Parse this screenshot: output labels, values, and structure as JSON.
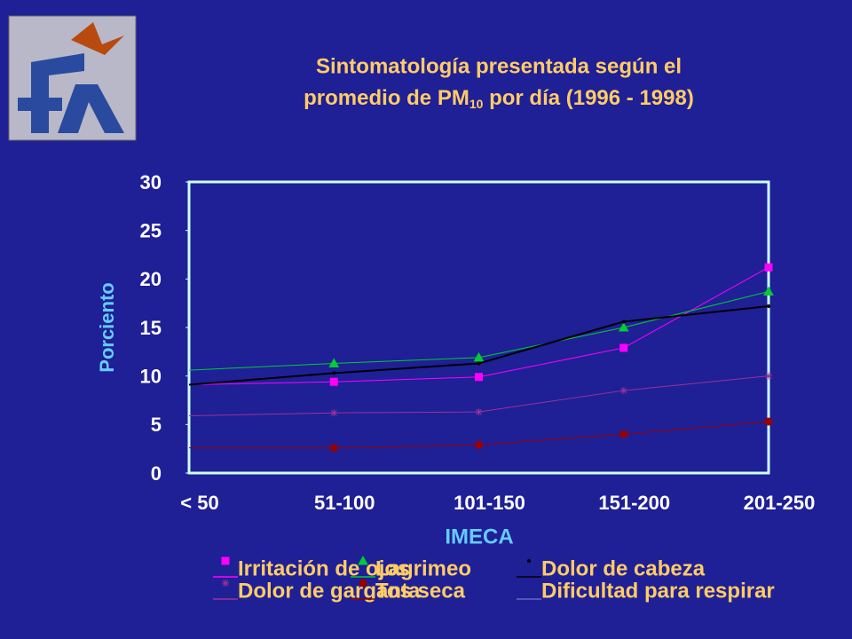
{
  "chart_data": {
    "type": "line",
    "title_line1": "Sintomatología presentada según el",
    "title_line2": "promedio de PM",
    "title_sub": "10",
    "title_line2_end": " por día  (1996 - 1998)",
    "y_label": "Porciento",
    "x_label": "IMECA",
    "categories": [
      "< 50",
      "51-100",
      "101-150",
      "151-200",
      "201-250"
    ],
    "ylim": [
      0,
      30
    ],
    "yticks": [
      0,
      5,
      10,
      15,
      20,
      25,
      30
    ],
    "series": [
      {
        "name": "Irritación de ojos",
        "color": "#ff00ff",
        "marker": "square",
        "values": [
          9.1,
          9.4,
          9.9,
          12.9,
          21.2
        ]
      },
      {
        "name": "Lagrimeo",
        "color": "#00cc33",
        "marker": "triangle",
        "values": [
          10.6,
          11.3,
          11.9,
          15,
          18.7
        ]
      },
      {
        "name": "Dolor de cabeza",
        "color": "#000000",
        "marker": "dot",
        "values": [
          9.1,
          10.3,
          11.3,
          15.6,
          17.2
        ]
      },
      {
        "name": "Dolor de garganta",
        "color": "#993399",
        "marker": "star",
        "values": [
          5.9,
          6.2,
          6.3,
          8.5,
          10
        ]
      },
      {
        "name": "Tos seca",
        "color": "#990000",
        "marker": "circle",
        "values": [
          2.6,
          2.6,
          2.9,
          4,
          5.3
        ]
      },
      {
        "name": "Dificultad para respirar",
        "color": "#6666cc",
        "marker": "none",
        "values": [
          null,
          null,
          null,
          null,
          null
        ]
      }
    ]
  }
}
